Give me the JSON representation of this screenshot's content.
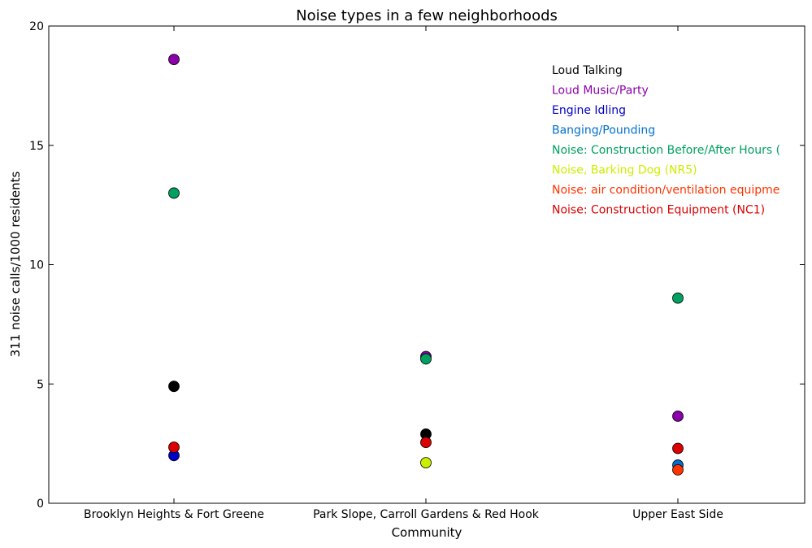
{
  "chart_data": {
    "type": "scatter",
    "title": "Noise types in a few neighborhoods",
    "xlabel": "Community",
    "ylabel": "311 noise calls/1000 residents",
    "ylim": [
      0,
      20
    ],
    "yticks": [
      "0",
      "5",
      "10",
      "15",
      "20"
    ],
    "categories": [
      "Brooklyn Heights & Fort Greene",
      "Park Slope, Carroll Gardens & Red Hook",
      "Upper East Side"
    ],
    "grid": false,
    "legend_placement": "top-right",
    "series": [
      {
        "name": "Loud Talking",
        "color": "#000000",
        "values": [
          4.9,
          2.9,
          null
        ]
      },
      {
        "name": "Loud Music/Party",
        "color": "#8B00A8",
        "values": [
          18.6,
          6.15,
          3.65
        ]
      },
      {
        "name": "Engine Idling",
        "color": "#0000C8",
        "values": [
          2.0,
          null,
          null
        ]
      },
      {
        "name": "Banging/Pounding",
        "color": "#0070D0",
        "values": [
          null,
          null,
          1.6
        ]
      },
      {
        "name": "Noise: Construction Before/After Hours (",
        "color": "#00A060",
        "values": [
          13.0,
          6.05,
          8.6
        ]
      },
      {
        "name": "Noise, Barking Dog (NR5)",
        "color": "#CCEE00",
        "values": [
          null,
          1.7,
          null
        ]
      },
      {
        "name": "Noise: air condition/ventilation equipme",
        "color": "#FF3300",
        "values": [
          null,
          null,
          1.4
        ]
      },
      {
        "name": "Noise: Construction Equipment (NC1)",
        "color": "#DD0000",
        "values": [
          2.35,
          2.55,
          2.3
        ]
      }
    ]
  }
}
